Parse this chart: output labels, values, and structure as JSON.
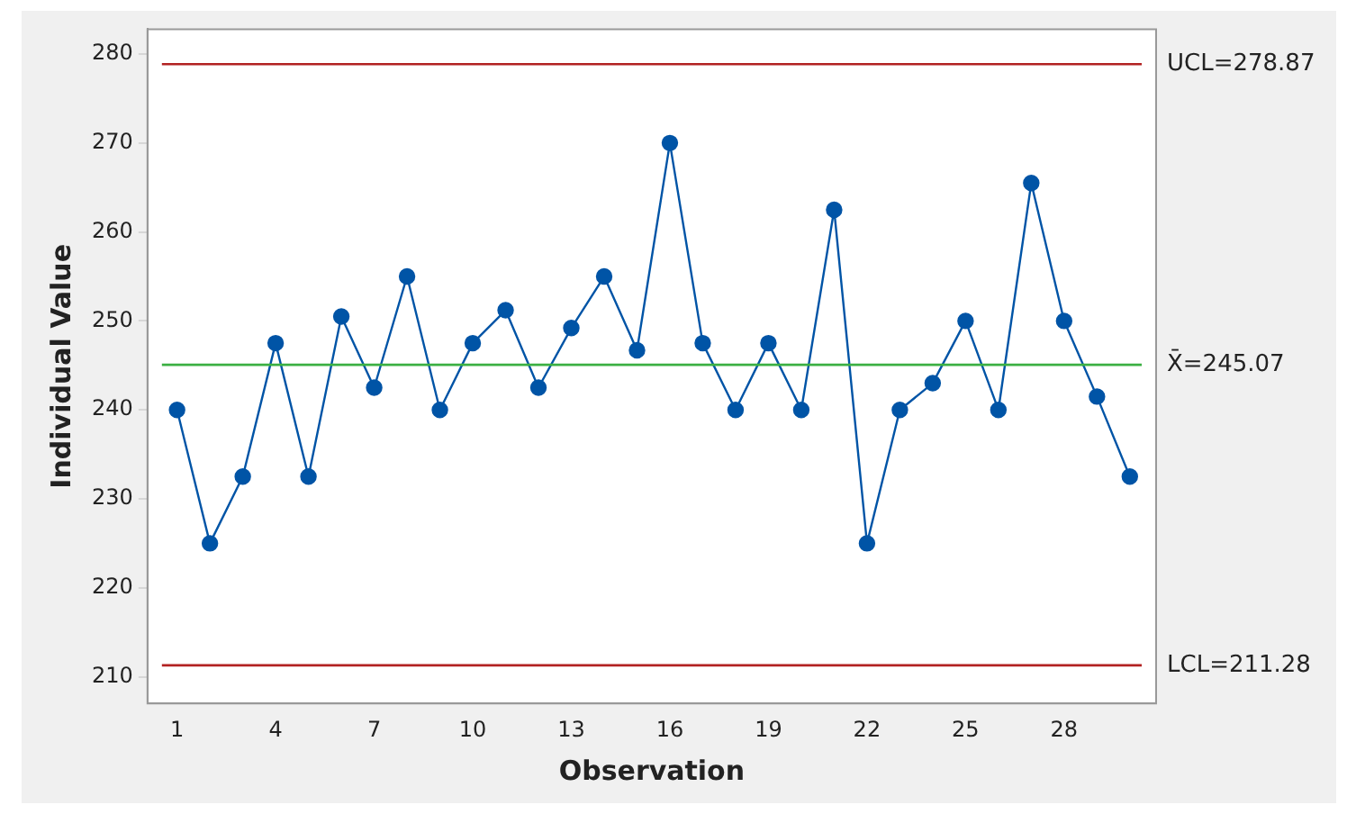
{
  "chart_data": {
    "type": "line",
    "xlabel": "Observation",
    "ylabel": "Individual Value",
    "x": [
      1,
      2,
      3,
      4,
      5,
      6,
      7,
      8,
      9,
      10,
      11,
      12,
      13,
      14,
      15,
      16,
      17,
      18,
      19,
      20,
      21,
      22,
      23,
      24,
      25,
      26,
      27,
      28,
      29,
      30
    ],
    "series": [
      {
        "color": "#0054a6",
        "values": [
          240,
          225,
          232.5,
          247.5,
          232.5,
          250.5,
          242.5,
          255,
          240,
          247.5,
          251.2,
          242.5,
          249.2,
          255,
          246.7,
          270,
          247.5,
          240,
          247.5,
          240,
          262.5,
          225,
          240,
          243,
          250,
          240,
          265.5,
          250,
          241.5,
          232.5
        ]
      }
    ],
    "xlim": [
      0.1,
      30.8
    ],
    "xticks": [
      1,
      4,
      7,
      10,
      13,
      16,
      19,
      22,
      25,
      28
    ],
    "ylim": [
      207,
      282.8
    ],
    "yticks": [
      210,
      220,
      230,
      240,
      250,
      260,
      270,
      280
    ],
    "ref_lines": [
      {
        "axis": "y",
        "value": 278.87,
        "label": "UCL=278.87",
        "color": "#b22222"
      },
      {
        "axis": "y",
        "value": 245.07,
        "label": "X̄=245.07",
        "color": "#3cb043"
      },
      {
        "axis": "y",
        "value": 211.28,
        "label": "LCL=211.28",
        "color": "#b22222"
      }
    ],
    "marker": "circle",
    "grid": false,
    "legend": false
  }
}
